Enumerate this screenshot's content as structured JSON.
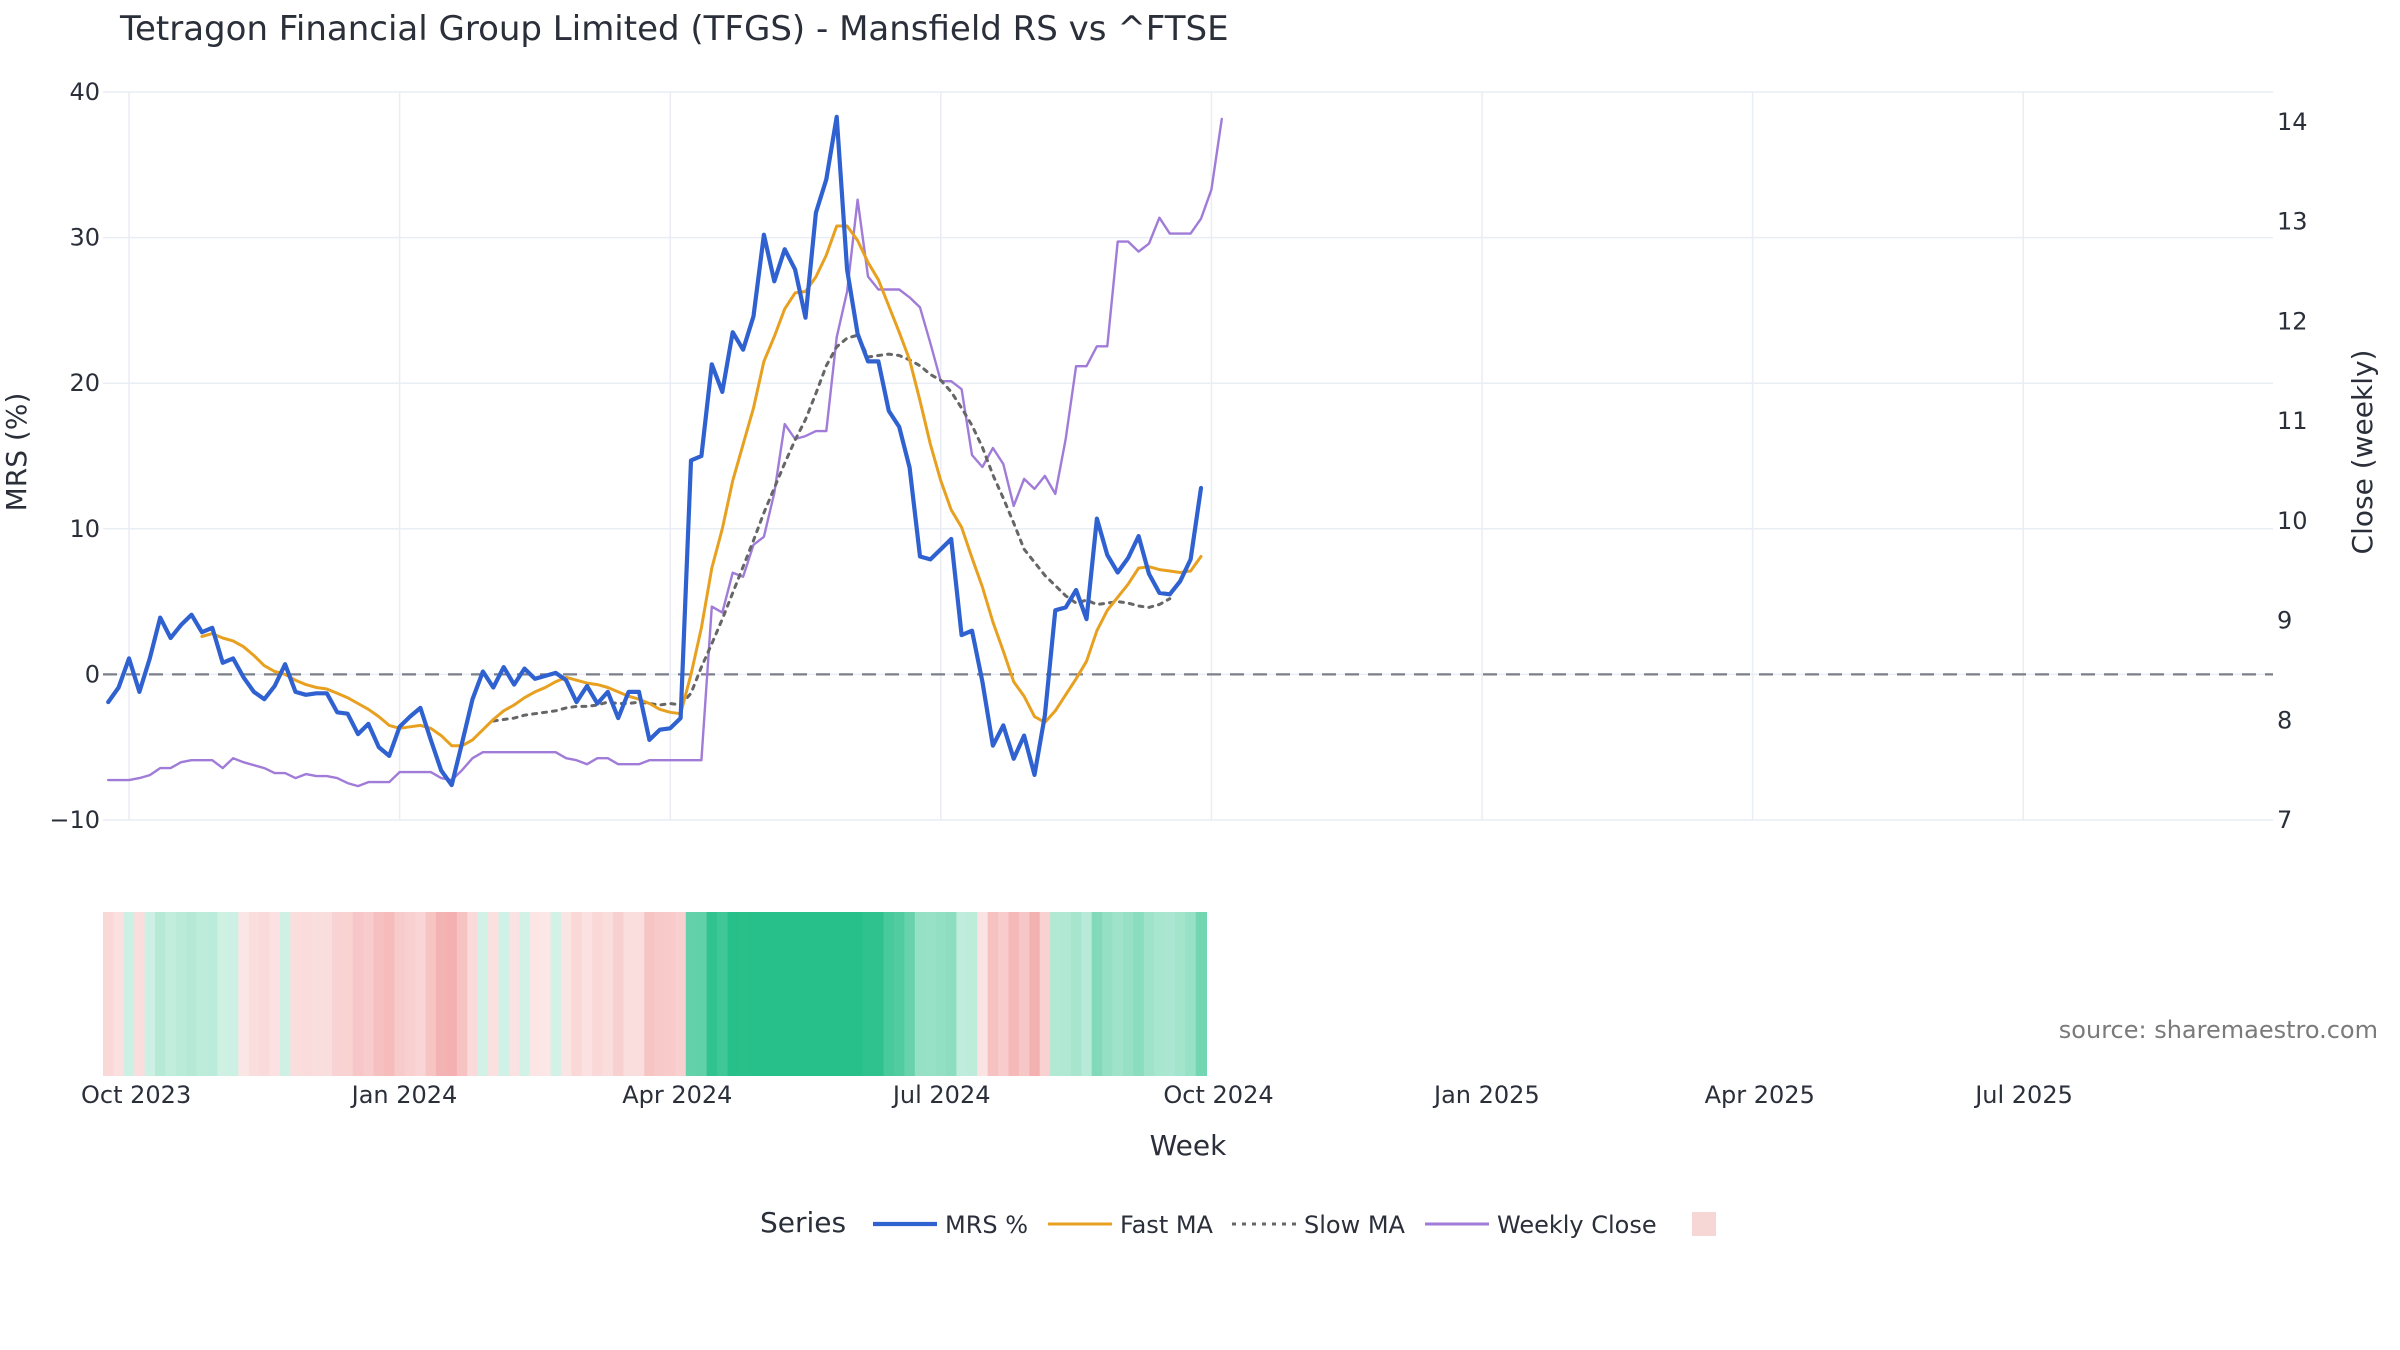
{
  "chart_data": {
    "type": "line",
    "title": "Tetragon Financial Group Limited (TFGS) - Mansfield RS vs ^FTSE",
    "xlabel": "Week",
    "ylabel": "MRS (%)",
    "y2label": "Close (weekly)",
    "source": "source: sharemaestro.com",
    "legend_title": "Series",
    "ylim": [
      -10,
      40
    ],
    "y2lim": [
      7,
      14.3
    ],
    "y_ticks": [
      -10,
      0,
      10,
      20,
      30,
      40
    ],
    "y_tick_labels": [
      "−10",
      "0",
      "10",
      "20",
      "30",
      "40"
    ],
    "y2_ticks": [
      7,
      8,
      9,
      10,
      11,
      12,
      13,
      14
    ],
    "y2_tick_labels": [
      "7",
      "8",
      "9",
      "10",
      "11",
      "12",
      "13",
      "14"
    ],
    "x_ticks": [
      2,
      28,
      54,
      80,
      106,
      132,
      158,
      184
    ],
    "x_tick_labels": [
      "Oct 2023",
      "Jan 2024",
      "Apr 2024",
      "Jul 2024",
      "Oct 2024",
      "Jan 2025",
      "Apr 2025",
      "Jul 2025"
    ],
    "x_range": [
      -0.5,
      208
    ],
    "series": [
      {
        "name": "MRS %",
        "color": "#2f62d0",
        "dash": "solid",
        "axis": "y1",
        "values": [
          -1.9,
          -0.9,
          1.1,
          -1.2,
          1.1,
          3.9,
          2.5,
          3.4,
          4.1,
          2.9,
          3.2,
          0.8,
          1.1,
          -0.2,
          -1.2,
          -1.7,
          -0.8,
          0.7,
          -1.2,
          -1.4,
          -1.3,
          -1.3,
          -2.6,
          -2.7,
          -4.1,
          -3.4,
          -5.0,
          -5.6,
          -3.6,
          -2.9,
          -2.3,
          -4.5,
          -6.6,
          -7.6,
          -4.7,
          -1.7,
          0.2,
          -0.9,
          0.5,
          -0.7,
          0.4,
          -0.3,
          -0.1,
          0.1,
          -0.4,
          -1.9,
          -0.8,
          -2.0,
          -1.2,
          -3.0,
          -1.2,
          -1.2,
          -4.5,
          -3.8,
          -3.7,
          -3.0,
          14.7,
          15.0,
          21.3,
          19.4,
          23.5,
          22.3,
          24.6,
          30.2,
          27.0,
          29.2,
          27.8,
          24.5,
          31.7,
          34.0,
          38.3,
          27.8,
          23.4,
          21.5,
          21.5,
          18.1,
          17.0,
          14.2,
          8.1,
          7.9,
          8.6,
          9.3,
          2.7,
          3.0,
          -0.5,
          -4.9,
          -3.5,
          -5.8,
          -4.2,
          -6.9,
          -2.8,
          4.4,
          4.6,
          5.8,
          3.8,
          10.7,
          8.2,
          7.0,
          8.0,
          9.5,
          6.9,
          5.6,
          5.5,
          6.4,
          7.9,
          12.8
        ]
      },
      {
        "name": "Fast MA",
        "color": "#e8a020",
        "dash": "solid",
        "axis": "y1",
        "values": [
          null,
          null,
          null,
          null,
          null,
          null,
          null,
          null,
          null,
          2.6,
          2.8,
          2.5,
          2.3,
          1.9,
          1.3,
          0.6,
          0.2,
          0.0,
          -0.4,
          -0.7,
          -0.9,
          -1.0,
          -1.3,
          -1.6,
          -2.0,
          -2.4,
          -2.9,
          -3.5,
          -3.7,
          -3.6,
          -3.5,
          -3.7,
          -4.2,
          -4.9,
          -4.9,
          -4.5,
          -3.8,
          -3.1,
          -2.5,
          -2.1,
          -1.6,
          -1.2,
          -0.9,
          -0.5,
          -0.2,
          -0.4,
          -0.6,
          -0.7,
          -0.9,
          -1.2,
          -1.5,
          -1.7,
          -2.0,
          -2.4,
          -2.6,
          -2.7,
          0.0,
          3.2,
          7.3,
          10.0,
          13.3,
          15.8,
          18.3,
          21.5,
          23.2,
          25.1,
          26.2,
          26.3,
          27.3,
          28.8,
          30.8,
          30.8,
          29.8,
          28.3,
          27.1,
          25.3,
          23.5,
          21.6,
          18.8,
          15.8,
          13.3,
          11.3,
          10.1,
          8.0,
          6.0,
          3.6,
          1.6,
          -0.5,
          -1.5,
          -2.9,
          -3.3,
          -2.5,
          -1.4,
          -0.3,
          0.9,
          3.0,
          4.4,
          5.3,
          6.2,
          7.3,
          7.4,
          7.2,
          7.1,
          7.0,
          7.1,
          8.1
        ]
      },
      {
        "name": "Slow MA",
        "color": "#666666",
        "dash": "dot",
        "axis": "y1",
        "values": [
          null,
          null,
          null,
          null,
          null,
          null,
          null,
          null,
          null,
          null,
          null,
          null,
          null,
          null,
          null,
          null,
          null,
          null,
          null,
          null,
          null,
          null,
          null,
          null,
          null,
          null,
          null,
          null,
          null,
          null,
          null,
          null,
          null,
          null,
          null,
          null,
          null,
          -3.2,
          -3.1,
          -3.0,
          -2.8,
          -2.7,
          -2.6,
          -2.5,
          -2.3,
          -2.2,
          -2.2,
          -2.1,
          -1.9,
          -2.0,
          -2.0,
          -1.9,
          -2.0,
          -2.1,
          -2.0,
          -2.1,
          -1.3,
          0.5,
          2.1,
          3.8,
          5.6,
          7.4,
          9.2,
          11.1,
          12.8,
          14.5,
          16.1,
          17.5,
          19.3,
          21.2,
          22.5,
          23.1,
          23.3,
          21.8,
          21.9,
          22.0,
          21.9,
          21.6,
          21.2,
          20.6,
          20.2,
          19.4,
          18.3,
          17.1,
          15.6,
          13.7,
          12.1,
          10.4,
          8.6,
          7.7,
          6.8,
          6.1,
          5.4,
          4.9,
          5.1,
          4.8,
          4.9,
          5.0,
          4.9,
          4.7,
          4.6,
          4.8,
          5.2
        ]
      },
      {
        "name": "Weekly Close",
        "color": "#a07bd8",
        "dash": "solid",
        "axis": "y2",
        "values": [
          7.4,
          7.4,
          7.4,
          7.42,
          7.45,
          7.52,
          7.52,
          7.58,
          7.6,
          7.6,
          7.6,
          7.52,
          7.62,
          7.58,
          7.55,
          7.52,
          7.47,
          7.47,
          7.42,
          7.46,
          7.44,
          7.44,
          7.42,
          7.37,
          7.34,
          7.38,
          7.38,
          7.38,
          7.48,
          7.48,
          7.48,
          7.48,
          7.42,
          7.4,
          7.5,
          7.62,
          7.68,
          7.68,
          7.68,
          7.68,
          7.68,
          7.68,
          7.68,
          7.68,
          7.62,
          7.6,
          7.56,
          7.62,
          7.62,
          7.56,
          7.56,
          7.56,
          7.6,
          7.6,
          7.6,
          7.6,
          7.6,
          7.6,
          9.14,
          9.08,
          9.48,
          9.44,
          9.76,
          9.84,
          10.28,
          10.97,
          10.82,
          10.85,
          10.9,
          10.9,
          11.84,
          12.3,
          13.22,
          12.45,
          12.32,
          12.32,
          12.32,
          12.24,
          12.14,
          11.78,
          11.4,
          11.4,
          11.32,
          10.66,
          10.54,
          10.73,
          10.57,
          10.15,
          10.42,
          10.32,
          10.45,
          10.27,
          10.82,
          11.55,
          11.55,
          11.75,
          11.75,
          12.8,
          12.8,
          12.7,
          12.78,
          13.04,
          12.88,
          12.88,
          12.88,
          13.03,
          13.32,
          14.03
        ]
      }
    ],
    "zero_line": 0,
    "heatmap": {
      "name": "MRS heat strip",
      "values": [
        -1.9,
        -0.9,
        1.1,
        -1.2,
        1.1,
        3.9,
        2.5,
        3.4,
        4.1,
        2.9,
        3.2,
        0.8,
        1.1,
        -0.2,
        -1.2,
        -1.7,
        -0.8,
        0.7,
        -1.2,
        -1.4,
        -1.3,
        -1.3,
        -2.6,
        -2.7,
        -4.1,
        -3.4,
        -5.0,
        -5.6,
        -3.6,
        -2.9,
        -2.3,
        -4.5,
        -6.6,
        -7.6,
        -4.7,
        -1.7,
        0.2,
        -0.9,
        0.5,
        -0.7,
        0.4,
        -0.3,
        -0.1,
        0.1,
        -0.4,
        -1.9,
        -0.8,
        -2.0,
        -1.2,
        -3.0,
        -1.2,
        -1.2,
        -4.5,
        -3.8,
        -3.7,
        -3.0,
        14.7,
        15.0,
        21.3,
        19.4,
        23.5,
        22.3,
        24.6,
        30.2,
        27.0,
        29.2,
        27.8,
        24.5,
        31.7,
        34.0,
        38.3,
        27.8,
        23.4,
        21.5,
        21.5,
        18.1,
        17.0,
        14.2,
        8.1,
        7.9,
        8.6,
        9.3,
        2.7,
        3.0,
        -0.5,
        -4.9,
        -3.5,
        -5.8,
        -4.2,
        -6.9,
        -2.8,
        4.4,
        4.6,
        5.8,
        3.8,
        10.7,
        8.2,
        7.0,
        8.0,
        9.5,
        6.9,
        5.6,
        5.5,
        6.4,
        7.9,
        12.8
      ],
      "positive_color": "#28c08a",
      "negative_color": "#f4b0b0"
    },
    "legend": {
      "placement": "bottom-center",
      "items": [
        {
          "name": "MRS %",
          "color": "#2f62d0",
          "dash": "solid"
        },
        {
          "name": "Fast MA",
          "color": "#e8a020",
          "dash": "solid"
        },
        {
          "name": "Slow MA",
          "color": "#666666",
          "dash": "dot"
        },
        {
          "name": "Weekly Close",
          "color": "#a07bd8",
          "dash": "solid"
        },
        {
          "name": "",
          "color": "#f7d6d6",
          "dash": "swatch"
        }
      ]
    }
  }
}
